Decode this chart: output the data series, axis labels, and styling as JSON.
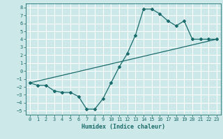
{
  "xlabel": "Humidex (Indice chaleur)",
  "bg_color": "#cce8e8",
  "grid_color": "#ffffff",
  "line_color": "#1a6b6b",
  "xlim": [
    -0.5,
    23.5
  ],
  "ylim": [
    -5.5,
    8.5
  ],
  "xticks": [
    0,
    1,
    2,
    3,
    4,
    5,
    6,
    7,
    8,
    9,
    10,
    11,
    12,
    13,
    14,
    15,
    16,
    17,
    18,
    19,
    20,
    21,
    22,
    23
  ],
  "yticks": [
    -5,
    -4,
    -3,
    -2,
    -1,
    0,
    1,
    2,
    3,
    4,
    5,
    6,
    7,
    8
  ],
  "line1_x": [
    0,
    1,
    2,
    3,
    4,
    5,
    6,
    7,
    8,
    9,
    10,
    11,
    12,
    13,
    14,
    15,
    16,
    17,
    18,
    19,
    20,
    21,
    22,
    23
  ],
  "line1_y": [
    -1.5,
    -1.8,
    -1.8,
    -2.5,
    -2.7,
    -2.7,
    -3.2,
    -4.8,
    -4.8,
    -3.5,
    -1.5,
    0.5,
    2.2,
    4.5,
    7.8,
    7.8,
    7.2,
    6.3,
    5.7,
    6.3,
    4.0,
    4.0,
    4.0,
    4.0
  ],
  "line2_x": [
    0,
    23
  ],
  "line2_y": [
    -1.5,
    4.0
  ]
}
